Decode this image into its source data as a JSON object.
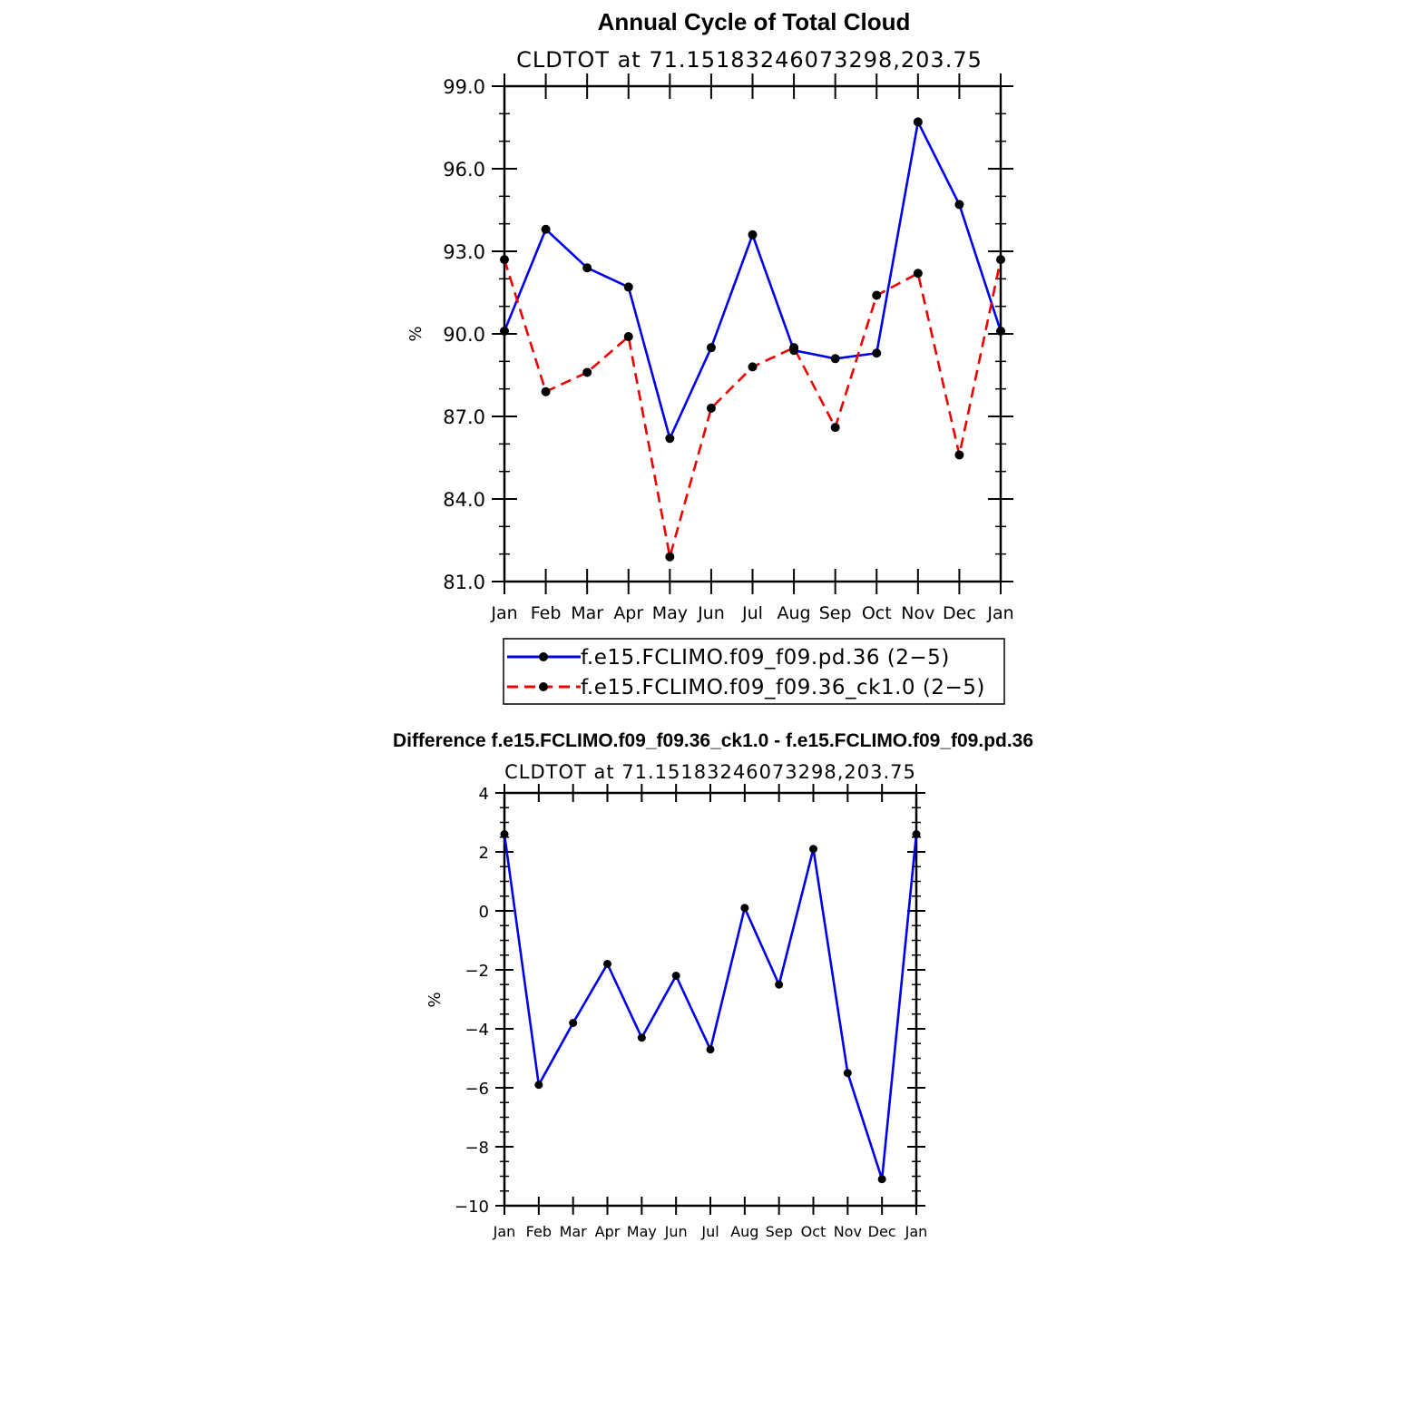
{
  "chart_data": [
    {
      "type": "line",
      "title": "Annual Cycle of Total Cloud",
      "subtitle": "CLDTOT at 71.15183246073298,203.75",
      "xlabel": "",
      "ylabel": "%",
      "ylim": [
        81.0,
        99.0
      ],
      "yticks": [
        "81.0",
        "84.0",
        "87.0",
        "90.0",
        "93.0",
        "96.0",
        "99.0"
      ],
      "ytick_values": [
        81,
        84,
        87,
        90,
        93,
        96,
        99
      ],
      "categories": [
        "Jan",
        "Feb",
        "Mar",
        "Apr",
        "May",
        "Jun",
        "Jul",
        "Aug",
        "Sep",
        "Oct",
        "Nov",
        "Dec",
        "Jan"
      ],
      "legend_position": "bottom",
      "series": [
        {
          "name": "f.e15.FCLIMO.f09_f09.pd.36 (2−5)",
          "color": "#0000ee",
          "dash": "solid",
          "values": [
            90.1,
            93.8,
            92.4,
            91.7,
            86.2,
            89.5,
            93.6,
            89.4,
            89.1,
            89.3,
            97.7,
            94.7,
            90.1
          ]
        },
        {
          "name": "f.e15.FCLIMO.f09_f09.36_ck1.0 (2−5)",
          "color": "#ee0000",
          "dash": "dashed",
          "values": [
            92.7,
            87.9,
            88.6,
            89.9,
            81.9,
            87.3,
            88.8,
            89.5,
            86.6,
            91.4,
            92.2,
            85.6,
            92.7
          ]
        }
      ]
    },
    {
      "type": "line",
      "title": "Difference f.e15.FCLIMO.f09_f09.36_ck1.0 - f.e15.FCLIMO.f09_f09.pd.36",
      "subtitle": "CLDTOT at 71.15183246073298,203.75",
      "xlabel": "",
      "ylabel": "%",
      "ylim": [
        -10,
        4
      ],
      "yticks": [
        "−10",
        "−8",
        "−6",
        "−4",
        "−2",
        "0",
        "2",
        "4"
      ],
      "ytick_values": [
        -10,
        -8,
        -6,
        -4,
        -2,
        0,
        2,
        4
      ],
      "categories": [
        "Jan",
        "Feb",
        "Mar",
        "Apr",
        "May",
        "Jun",
        "Jul",
        "Aug",
        "Sep",
        "Oct",
        "Nov",
        "Dec",
        "Jan"
      ],
      "series": [
        {
          "name": "Difference",
          "color": "#0000ee",
          "dash": "solid",
          "values": [
            2.6,
            -5.9,
            -3.8,
            -1.8,
            -4.3,
            -2.2,
            -4.7,
            0.1,
            -2.5,
            2.1,
            -5.5,
            -9.1,
            2.6
          ]
        }
      ]
    }
  ]
}
